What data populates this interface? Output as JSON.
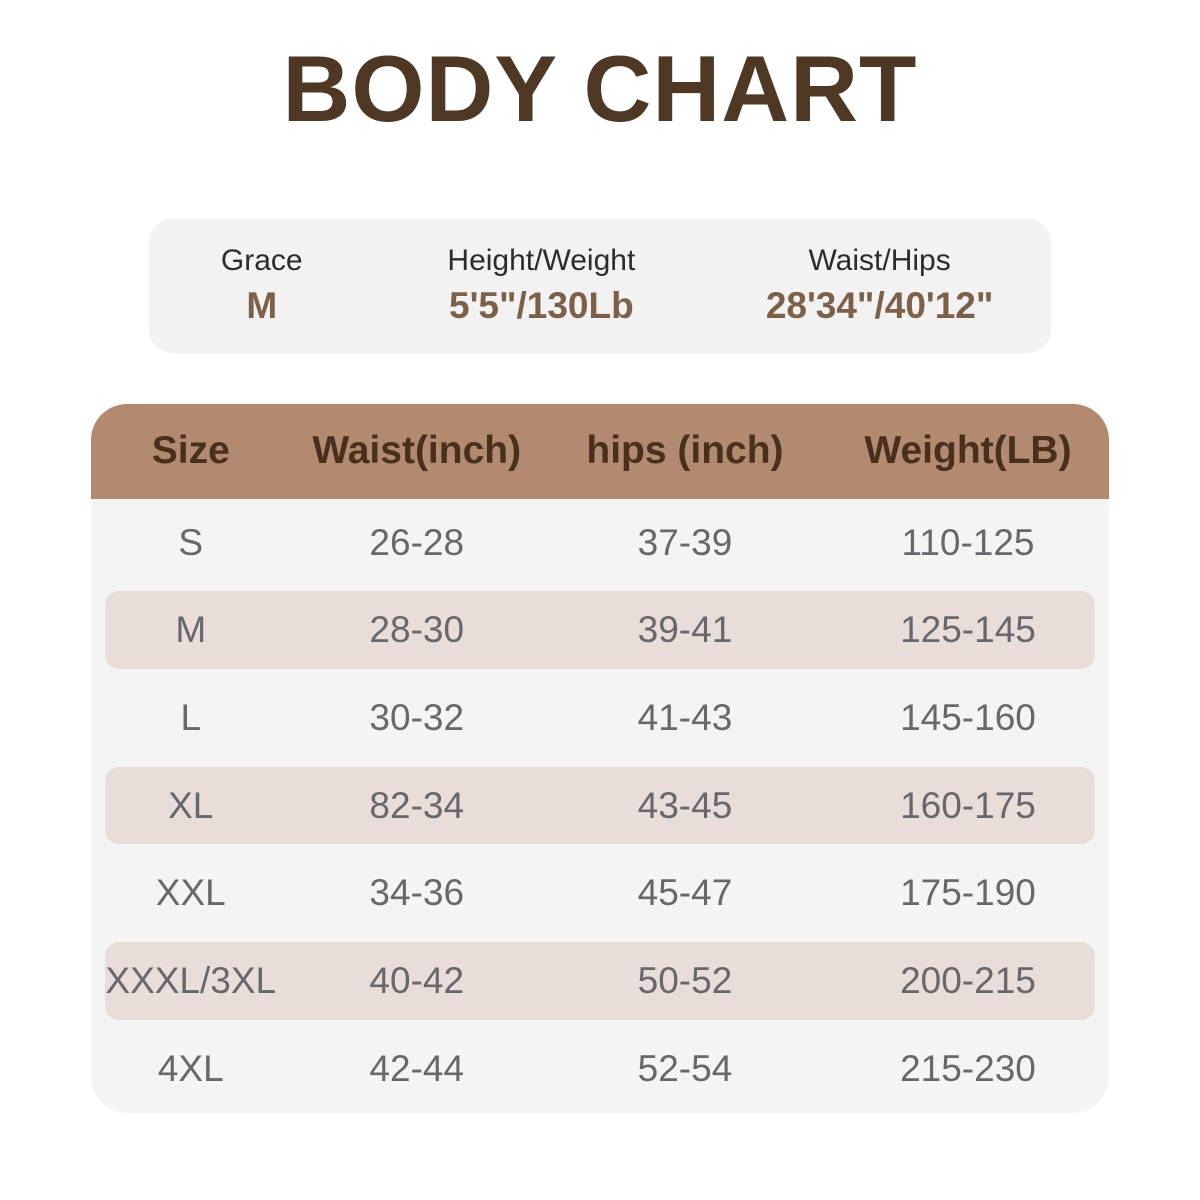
{
  "page": {
    "title": "BODY CHART"
  },
  "model_info": {
    "columns": [
      {
        "label": "Grace",
        "value": "M"
      },
      {
        "label": "Height/Weight",
        "value": "5'5\"/130Lb"
      },
      {
        "label": "Waist/Hips",
        "value": "28'34\"/40'12\""
      }
    ]
  },
  "chart_data": {
    "type": "table",
    "title": "BODY CHART",
    "columns": [
      "Size",
      "Waist(inch)",
      "hips (inch)",
      "Weight(LB)"
    ],
    "rows": [
      [
        "S",
        "26-28",
        "37-39",
        "110-125"
      ],
      [
        "M",
        "28-30",
        "39-41",
        "125-145"
      ],
      [
        "L",
        "30-32",
        "41-43",
        "145-160"
      ],
      [
        "XL",
        "82-34",
        "43-45",
        "160-175"
      ],
      [
        "XXL",
        "34-36",
        "45-47",
        "175-190"
      ],
      [
        "XXXL/3XL",
        "40-42",
        "50-52",
        "200-215"
      ],
      [
        "4XL",
        "42-44",
        "52-54",
        "215-230"
      ]
    ],
    "layout": {
      "striped_rows": [
        "M",
        "XL",
        "XXXL/3XL"
      ],
      "header_position": "top"
    }
  },
  "colors": {
    "title_text": "#4e3723",
    "info_card_background": "#f3f2f2",
    "info_label_text": "#2e2c29",
    "info_value_text": "#7d6048",
    "table_header_background": "#b28a6f",
    "table_header_text": "#48301d",
    "table_row_background": "#f5f4f4",
    "table_stripe_background": "#e9ddd9",
    "table_cell_text": "#68676b",
    "page_background": "#ffffff"
  }
}
